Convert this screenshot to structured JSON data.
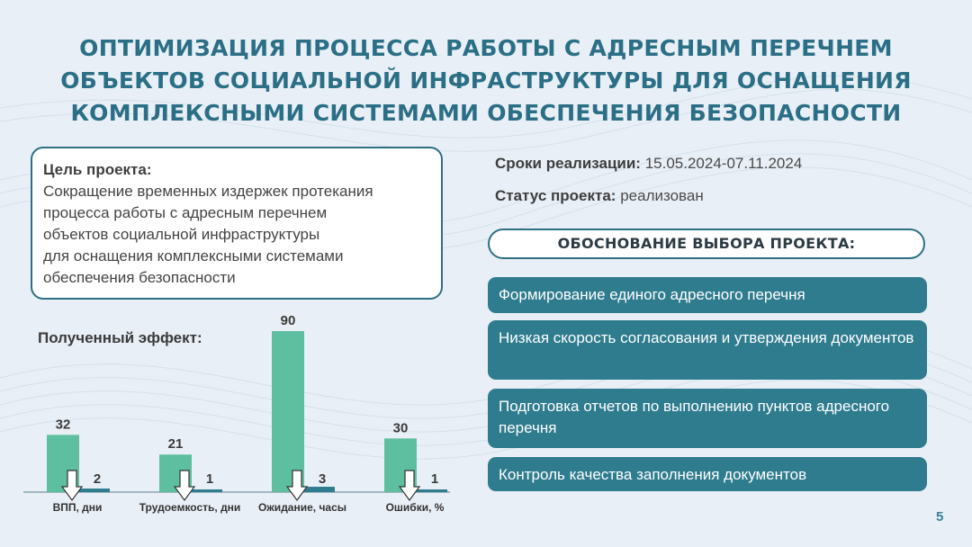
{
  "title": {
    "lines": [
      "ОПТИМИЗАЦИЯ ПРОЦЕССА РАБОТЫ С АДРЕСНЫМ ПЕРЕЧНЕМ",
      "ОБЪЕКТОВ СОЦИАЛЬНОЙ ИНФРАСТРУКТУРЫ ДЛЯ ОСНАЩЕНИЯ",
      "КОМПЛЕКСНЫМИ СИСТЕМАМИ ОБЕСПЕЧЕНИЯ БЕЗОПАСНОСТИ"
    ]
  },
  "goal": {
    "label": "Цель проекта:",
    "text": "Сокращение временных издержек протекания\nпроцесса работы с адресным перечнем\nобъектов социальной инфраструктуры\nдля оснащения комплексными системами\nобеспечения безопасности"
  },
  "effect": {
    "label": "Полученный эффект:"
  },
  "timeline": {
    "label": "Сроки реализации:",
    "value": "15.05.2024-07.11.2024"
  },
  "status": {
    "label": "Статус  проекта:",
    "value": "реализован"
  },
  "justification": {
    "header": "ОБОСНОВАНИЕ ВЫБОРА ПРОЕКТА:",
    "items": [
      "Формирование единого адресного перечня",
      "Низкая скорость согласования и утверждения документов",
      "Подготовка отчетов по выполнению пунктов адресного перечня",
      "Контроль качества заполнения документов"
    ]
  },
  "page_number": "5",
  "colors": {
    "title": "#2b6f86",
    "before_bar": "#5dbf9f",
    "after_bar": "#2f7c8f",
    "reason_bg": "#2f7c8f"
  },
  "chart_data": {
    "type": "bar",
    "categories": [
      "ВПП, дни",
      "Трудоемкость, дни",
      "Ожидание, часы",
      "Ошибки, %"
    ],
    "series": [
      {
        "values": [
          32,
          21,
          90,
          30
        ]
      },
      {
        "values": [
          2,
          1,
          3,
          1
        ]
      }
    ],
    "ylim": [
      0,
      90
    ],
    "grid": false,
    "legend": "none"
  }
}
